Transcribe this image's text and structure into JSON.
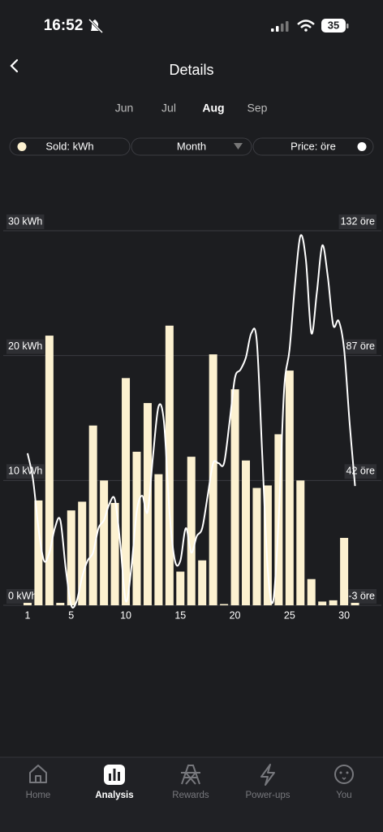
{
  "status_bar": {
    "time": "16:52",
    "battery": "35"
  },
  "header": {
    "title": "Details"
  },
  "months": {
    "items": [
      "Jun",
      "Jul",
      "Aug",
      "Sep"
    ],
    "selected": 2
  },
  "filters": {
    "period": "Month"
  },
  "chart_data": {
    "type": "bar",
    "x": [
      1,
      2,
      3,
      4,
      5,
      6,
      7,
      8,
      9,
      10,
      11,
      12,
      13,
      14,
      15,
      16,
      17,
      18,
      19,
      20,
      21,
      22,
      23,
      24,
      25,
      26,
      27,
      28,
      29,
      30,
      31
    ],
    "series": [
      {
        "name": "Sold: kWh",
        "type": "bar",
        "color": "#fcf1d0",
        "values": [
          0.2,
          8.4,
          21.6,
          0.2,
          7.6,
          8.3,
          14.4,
          10,
          8.2,
          18.2,
          12.3,
          16.2,
          10.5,
          22.4,
          2.7,
          11.9,
          3.6,
          20.1,
          0.1,
          17.3,
          11.6,
          9.4,
          9.6,
          13.7,
          18.8,
          10,
          2.1,
          0.3,
          0.4,
          5.4,
          0.2
        ]
      },
      {
        "name": "Price: öre",
        "type": "line",
        "axis": "y2",
        "color": "#ffffff",
        "x": [
          1,
          1.5,
          2,
          2.5,
          3,
          3.5,
          4,
          4.5,
          5,
          5.5,
          6,
          6.5,
          7,
          7.5,
          8,
          8.5,
          9,
          9.5,
          10,
          10.5,
          11,
          11.5,
          12,
          12.5,
          13,
          13.5,
          14,
          14.5,
          15,
          15.5,
          16,
          16.5,
          17,
          17.5,
          18,
          18.5,
          19,
          19.5,
          20,
          20.5,
          21,
          21.5,
          22,
          22.5,
          23,
          23.5,
          24,
          24.5,
          25,
          25.5,
          26,
          26.5,
          27,
          27.5,
          28,
          28.5,
          29,
          29.5,
          30,
          30.5,
          31
        ],
        "values": [
          51.8,
          42.4,
          24.8,
          13.1,
          16,
          24.8,
          27.7,
          10.2,
          -3,
          -1.5,
          7.2,
          13.1,
          16,
          24.8,
          27.7,
          33.6,
          35.1,
          19,
          -1.5,
          10.2,
          30.7,
          36.5,
          30.7,
          51.2,
          68.7,
          62.9,
          30.7,
          13.1,
          13.1,
          24.8,
          16,
          21.9,
          24.8,
          36.5,
          48.2,
          48.2,
          48.2,
          62.9,
          79,
          81.9,
          86.3,
          95.1,
          92.2,
          51.2,
          10.2,
          -1.5,
          27.7,
          74.6,
          89.2,
          112.7,
          130.2,
          121.4,
          95.1,
          109.7,
          126.7,
          115.6,
          98,
          99.5,
          89.2,
          62.9,
          40
        ]
      }
    ],
    "xlim": [
      0,
      32
    ],
    "xticks": [
      1,
      5,
      10,
      15,
      20,
      25,
      30
    ],
    "ylim": [
      0,
      30
    ],
    "yticks": [
      {
        "value": 0,
        "label": "0 kWh"
      },
      {
        "value": 10,
        "label": "10 kWh"
      },
      {
        "value": 20,
        "label": "20 kWh"
      },
      {
        "value": 30,
        "label": "30 kWh"
      }
    ],
    "y2lim": [
      -3,
      132
    ],
    "y2ticks": [
      {
        "value": -3,
        "label": "-3 öre"
      },
      {
        "value": 42,
        "label": "42 öre"
      },
      {
        "value": 87,
        "label": "87 öre"
      },
      {
        "value": 132,
        "label": "132 öre"
      }
    ],
    "grid": true
  },
  "nav": {
    "items": [
      "Home",
      "Analysis",
      "Rewards",
      "Power-ups",
      "You"
    ],
    "active": 1
  }
}
